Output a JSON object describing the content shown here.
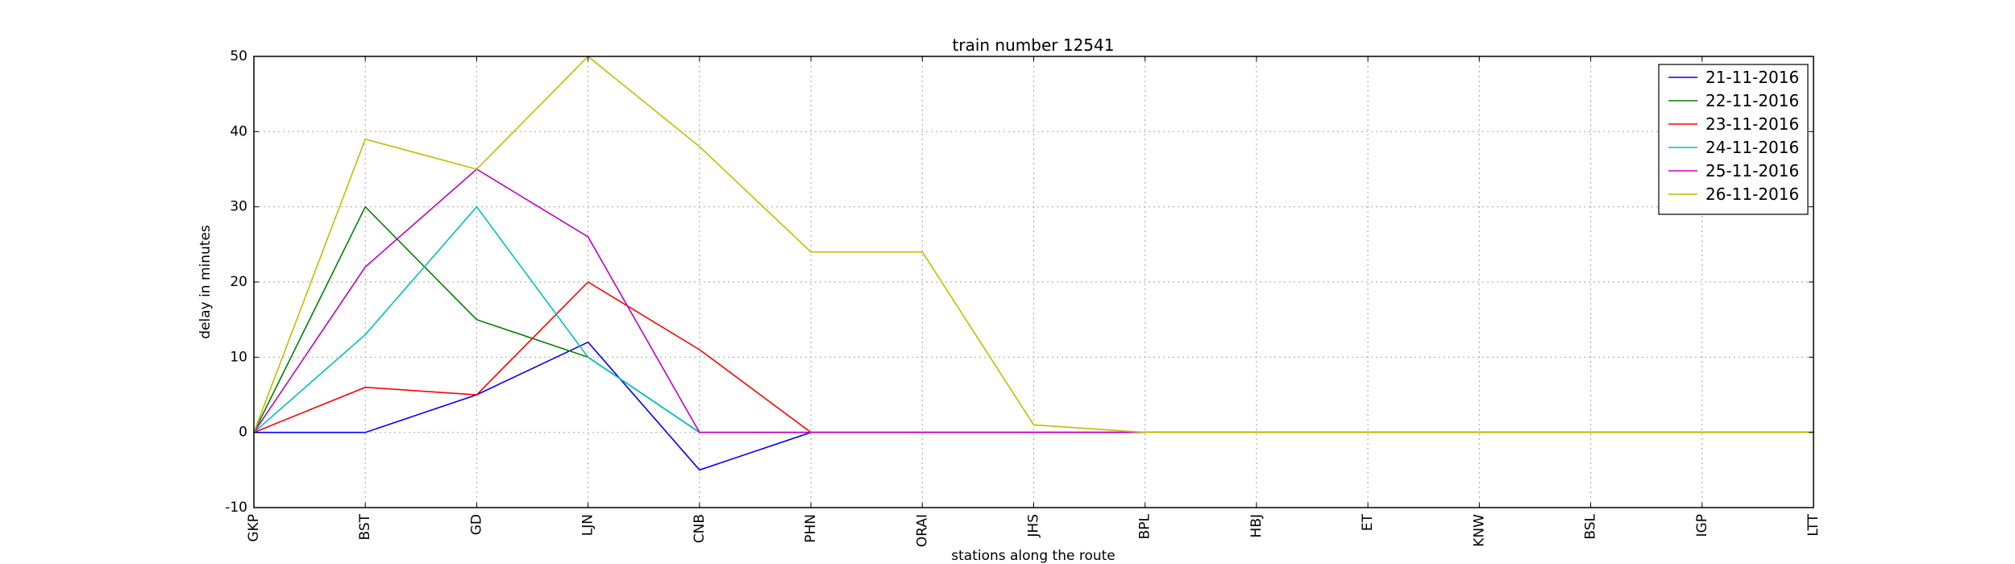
{
  "chart_data": {
    "type": "line",
    "title": "train number 12541",
    "xlabel": "stations along the route",
    "ylabel": "delay in minutes",
    "categories": [
      "GKP",
      "BST",
      "GD",
      "LJN",
      "CNB",
      "PHN",
      "ORAI",
      "JHS",
      "BPL",
      "HBJ",
      "ET",
      "KNW",
      "BSL",
      "IGP",
      "LTT"
    ],
    "ylim": [
      -10,
      50
    ],
    "yticks": [
      -10,
      0,
      10,
      20,
      30,
      40,
      50
    ],
    "grid": true,
    "legend_position": "top-right",
    "series": [
      {
        "name": "21-11-2016",
        "color": "#0000ff",
        "values": [
          0,
          0,
          5,
          12,
          -5,
          0,
          0,
          0,
          0,
          0,
          0,
          0,
          0,
          0,
          0
        ]
      },
      {
        "name": "22-11-2016",
        "color": "#008000",
        "values": [
          0,
          30,
          15,
          10,
          0,
          0,
          0,
          0,
          0,
          0,
          0,
          0,
          0,
          0,
          0
        ]
      },
      {
        "name": "23-11-2016",
        "color": "#ff0000",
        "values": [
          0,
          6,
          5,
          20,
          11,
          0,
          0,
          0,
          0,
          0,
          0,
          0,
          0,
          0,
          0
        ]
      },
      {
        "name": "24-11-2016",
        "color": "#00bfbf",
        "values": [
          0,
          13,
          30,
          10,
          0,
          0,
          0,
          0,
          0,
          0,
          0,
          0,
          0,
          0,
          0
        ]
      },
      {
        "name": "25-11-2016",
        "color": "#bf00bf",
        "values": [
          0,
          22,
          35,
          26,
          0,
          0,
          0,
          0,
          0,
          0,
          0,
          0,
          0,
          0,
          0
        ]
      },
      {
        "name": "26-11-2016",
        "color": "#bfbf00",
        "values": [
          0,
          39,
          35,
          50,
          38,
          24,
          24,
          1,
          0,
          0,
          0,
          0,
          0,
          0,
          0
        ]
      }
    ]
  }
}
